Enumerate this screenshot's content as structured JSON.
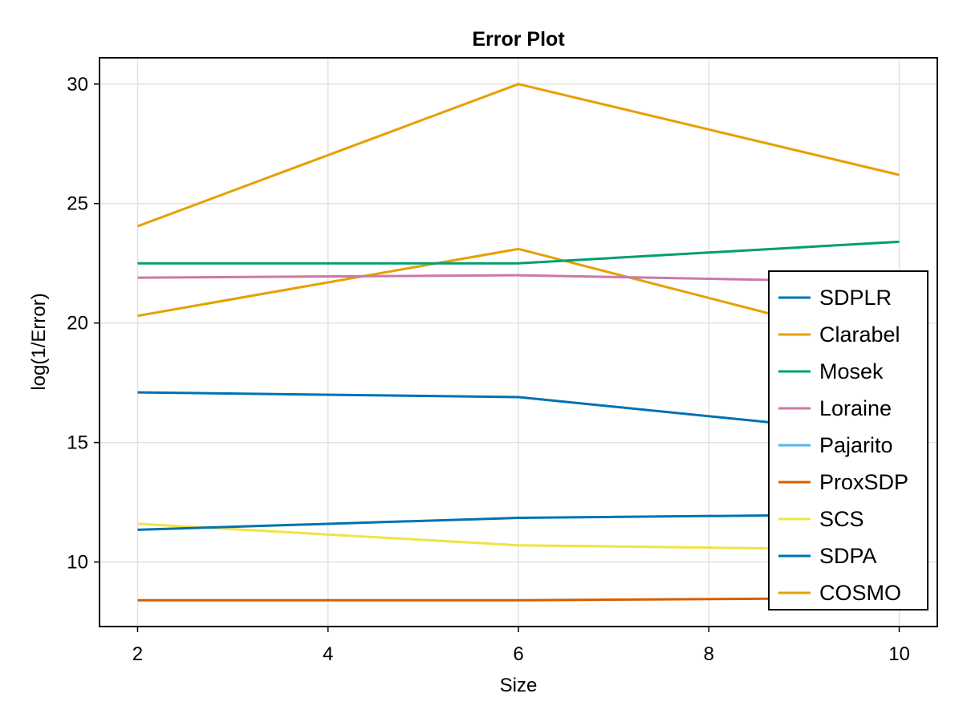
{
  "chart_data": {
    "type": "line",
    "title": "Error Plot",
    "xlabel": "Size",
    "ylabel": "log(1/Error)",
    "xlim": [
      1.6,
      10.4
    ],
    "ylim": [
      7.3,
      31.1
    ],
    "xticks": [
      2,
      4,
      6,
      8,
      10
    ],
    "yticks": [
      10,
      15,
      20,
      25,
      30
    ],
    "grid": true,
    "legend_position": "bottom-right",
    "x": [
      2,
      6,
      10
    ],
    "series": [
      {
        "name": "SDPLR",
        "color": "#0072b2",
        "values": [
          17.1,
          16.9,
          15.3
        ]
      },
      {
        "name": "Clarabel",
        "color": "#e69f00",
        "values": [
          20.3,
          23.1,
          19.0
        ]
      },
      {
        "name": "Mosek",
        "color": "#009e73",
        "values": [
          22.5,
          22.5,
          23.4
        ]
      },
      {
        "name": "Loraine",
        "color": "#cc79a7",
        "values": [
          21.9,
          22.0,
          21.7
        ]
      },
      {
        "name": "Pajarito",
        "color": "#56b4e9",
        "values": [
          null,
          null,
          null
        ]
      },
      {
        "name": "ProxSDP",
        "color": "#d55e00",
        "values": [
          8.4,
          8.4,
          8.5
        ]
      },
      {
        "name": "SCS",
        "color": "#f0e442",
        "values": [
          11.6,
          10.7,
          10.5
        ]
      },
      {
        "name": "SDPA",
        "color": "#0072b2",
        "values": [
          11.35,
          11.85,
          12.0
        ]
      },
      {
        "name": "COSMO",
        "color": "#e69f00",
        "values": [
          24.05,
          30.0,
          26.2
        ]
      }
    ]
  }
}
